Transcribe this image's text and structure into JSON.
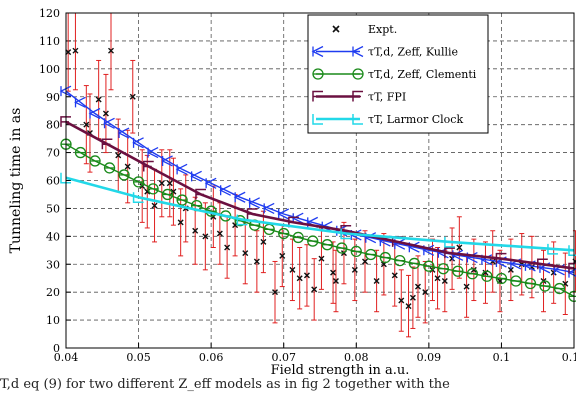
{
  "caption": "T,d eq (9) for two different Z_eff models as in fig 2 together with the",
  "chart_data": {
    "type": "line",
    "xlabel": "Field strength in a.u.",
    "ylabel": "Tunneling time in as",
    "xlim": [
      0.04,
      0.11
    ],
    "ylim": [
      0,
      120
    ],
    "xticks": [
      0.04,
      0.05,
      0.06,
      0.07,
      0.08,
      0.09,
      0.1,
      0.11
    ],
    "yticks": [
      0,
      10,
      20,
      30,
      40,
      50,
      60,
      70,
      80,
      90,
      100,
      110,
      120
    ],
    "grid": true,
    "legend_position": "top-right",
    "legend": [
      {
        "label": "Expt.",
        "sub": ""
      },
      {
        "label": "τT,d, Zeff, Kullie",
        "sub": ""
      },
      {
        "label": "τT,d, Zeff, Clementi",
        "sub": ""
      },
      {
        "label": "τT, FPI",
        "sub": ""
      },
      {
        "label": "τT, Larmor Clock",
        "sub": ""
      }
    ],
    "series": [
      {
        "name": "τT,d, Zeff, Kullie",
        "color": "#1f3cf0",
        "marker": "K",
        "x": [
          0.04,
          0.042,
          0.044,
          0.046,
          0.048,
          0.05,
          0.052,
          0.054,
          0.056,
          0.058,
          0.06,
          0.062,
          0.064,
          0.066,
          0.068,
          0.07,
          0.072,
          0.074,
          0.076,
          0.078,
          0.08,
          0.082,
          0.084,
          0.086,
          0.088,
          0.09,
          0.092,
          0.094,
          0.096,
          0.098,
          0.1,
          0.102,
          0.104,
          0.106,
          0.108,
          0.11
        ],
        "y": [
          92,
          88,
          84,
          80.5,
          77,
          73.5,
          70,
          67,
          64,
          61.5,
          59,
          56.5,
          54,
          52,
          50,
          48,
          46.5,
          45,
          43.5,
          42,
          40.5,
          39.5,
          38.3,
          37.2,
          36.1,
          35,
          34.1,
          33.2,
          32.4,
          31.6,
          30.8,
          30.1,
          29.4,
          28.7,
          28,
          27
        ]
      },
      {
        "name": "τT,d, Zeff, Clementi",
        "color": "#1a8a1a",
        "marker": "C",
        "x": [
          0.04,
          0.042,
          0.044,
          0.046,
          0.048,
          0.05,
          0.052,
          0.054,
          0.056,
          0.058,
          0.06,
          0.062,
          0.064,
          0.066,
          0.068,
          0.07,
          0.072,
          0.074,
          0.076,
          0.078,
          0.08,
          0.082,
          0.084,
          0.086,
          0.088,
          0.09,
          0.092,
          0.094,
          0.096,
          0.098,
          0.1,
          0.102,
          0.104,
          0.106,
          0.108,
          0.11
        ],
        "y": [
          73,
          70,
          67,
          64.5,
          62,
          59.5,
          57,
          55,
          53,
          51,
          49,
          47.3,
          45.6,
          44,
          42.5,
          41,
          39.6,
          38.3,
          37,
          35.8,
          34.6,
          33.5,
          32.4,
          31.3,
          30.3,
          29.3,
          28.4,
          27.5,
          26.6,
          25.7,
          24.9,
          24,
          23.1,
          22.2,
          21.3,
          18.5
        ]
      },
      {
        "name": "τT, FPI",
        "color": "#6b1040",
        "marker": "F",
        "x": [
          0.04,
          0.0457,
          0.0514,
          0.0586,
          0.0657,
          0.0714,
          0.0786,
          0.0857,
          0.0929,
          0.1,
          0.1057,
          0.11
        ],
        "y": [
          81,
          73,
          65,
          55,
          48,
          45,
          42,
          38,
          34,
          32,
          30,
          28.5
        ]
      },
      {
        "name": "τT, Larmor Clock",
        "color": "#22d8e8",
        "marker": "L",
        "x": [
          0.04,
          0.05,
          0.0643,
          0.0786,
          0.0929,
          0.1071,
          0.11
        ],
        "y": [
          61,
          54,
          46,
          41,
          38,
          35.5,
          35
        ]
      }
    ],
    "expt": {
      "name": "Expt.",
      "color": "#e02020",
      "x": [
        0.0403,
        0.0413,
        0.0428,
        0.0433,
        0.0445,
        0.0455,
        0.0462,
        0.0472,
        0.0485,
        0.0492,
        0.0505,
        0.0512,
        0.0522,
        0.0532,
        0.0543,
        0.0548,
        0.0558,
        0.0565,
        0.0578,
        0.0592,
        0.0603,
        0.0612,
        0.0622,
        0.0633,
        0.0647,
        0.0663,
        0.0672,
        0.0688,
        0.0698,
        0.0712,
        0.0722,
        0.0732,
        0.0742,
        0.0752,
        0.0768,
        0.0772,
        0.0783,
        0.0798,
        0.0812,
        0.0828,
        0.0838,
        0.0853,
        0.0862,
        0.0872,
        0.0878,
        0.0885,
        0.0895,
        0.0905,
        0.0912,
        0.0922,
        0.0932,
        0.0942,
        0.0952,
        0.0962,
        0.0978,
        0.0988,
        0.0998,
        0.1013,
        0.1028,
        0.1042,
        0.1058,
        0.1072,
        0.1088,
        0.1102
      ],
      "y": [
        106,
        106.5,
        80,
        77,
        89,
        84,
        106.5,
        69,
        65,
        90,
        58,
        56,
        51,
        59,
        59,
        56,
        45,
        50,
        42,
        40,
        47,
        41,
        36,
        44,
        34,
        31,
        38,
        20,
        33,
        28,
        25,
        26,
        21,
        32,
        27,
        24,
        34,
        28,
        31,
        24,
        30,
        26,
        17,
        15,
        18,
        22,
        20,
        28,
        25,
        24,
        32,
        36,
        22,
        28,
        27,
        31,
        24,
        28,
        30,
        29,
        24,
        27,
        23,
        31
      ],
      "err": [
        14,
        14,
        14,
        14,
        14,
        14,
        14,
        13,
        13,
        13,
        13,
        13,
        13,
        12,
        12,
        12,
        12,
        12,
        12,
        12,
        11,
        11,
        11,
        11,
        11,
        11,
        11,
        11,
        11,
        11,
        11,
        11,
        11,
        11,
        11,
        11,
        11,
        11,
        11,
        11,
        11,
        11,
        11,
        11,
        11,
        11,
        11,
        11,
        11,
        11,
        11,
        11,
        11,
        11,
        11,
        11,
        11,
        11,
        11,
        11,
        11,
        11,
        11,
        11
      ]
    }
  }
}
